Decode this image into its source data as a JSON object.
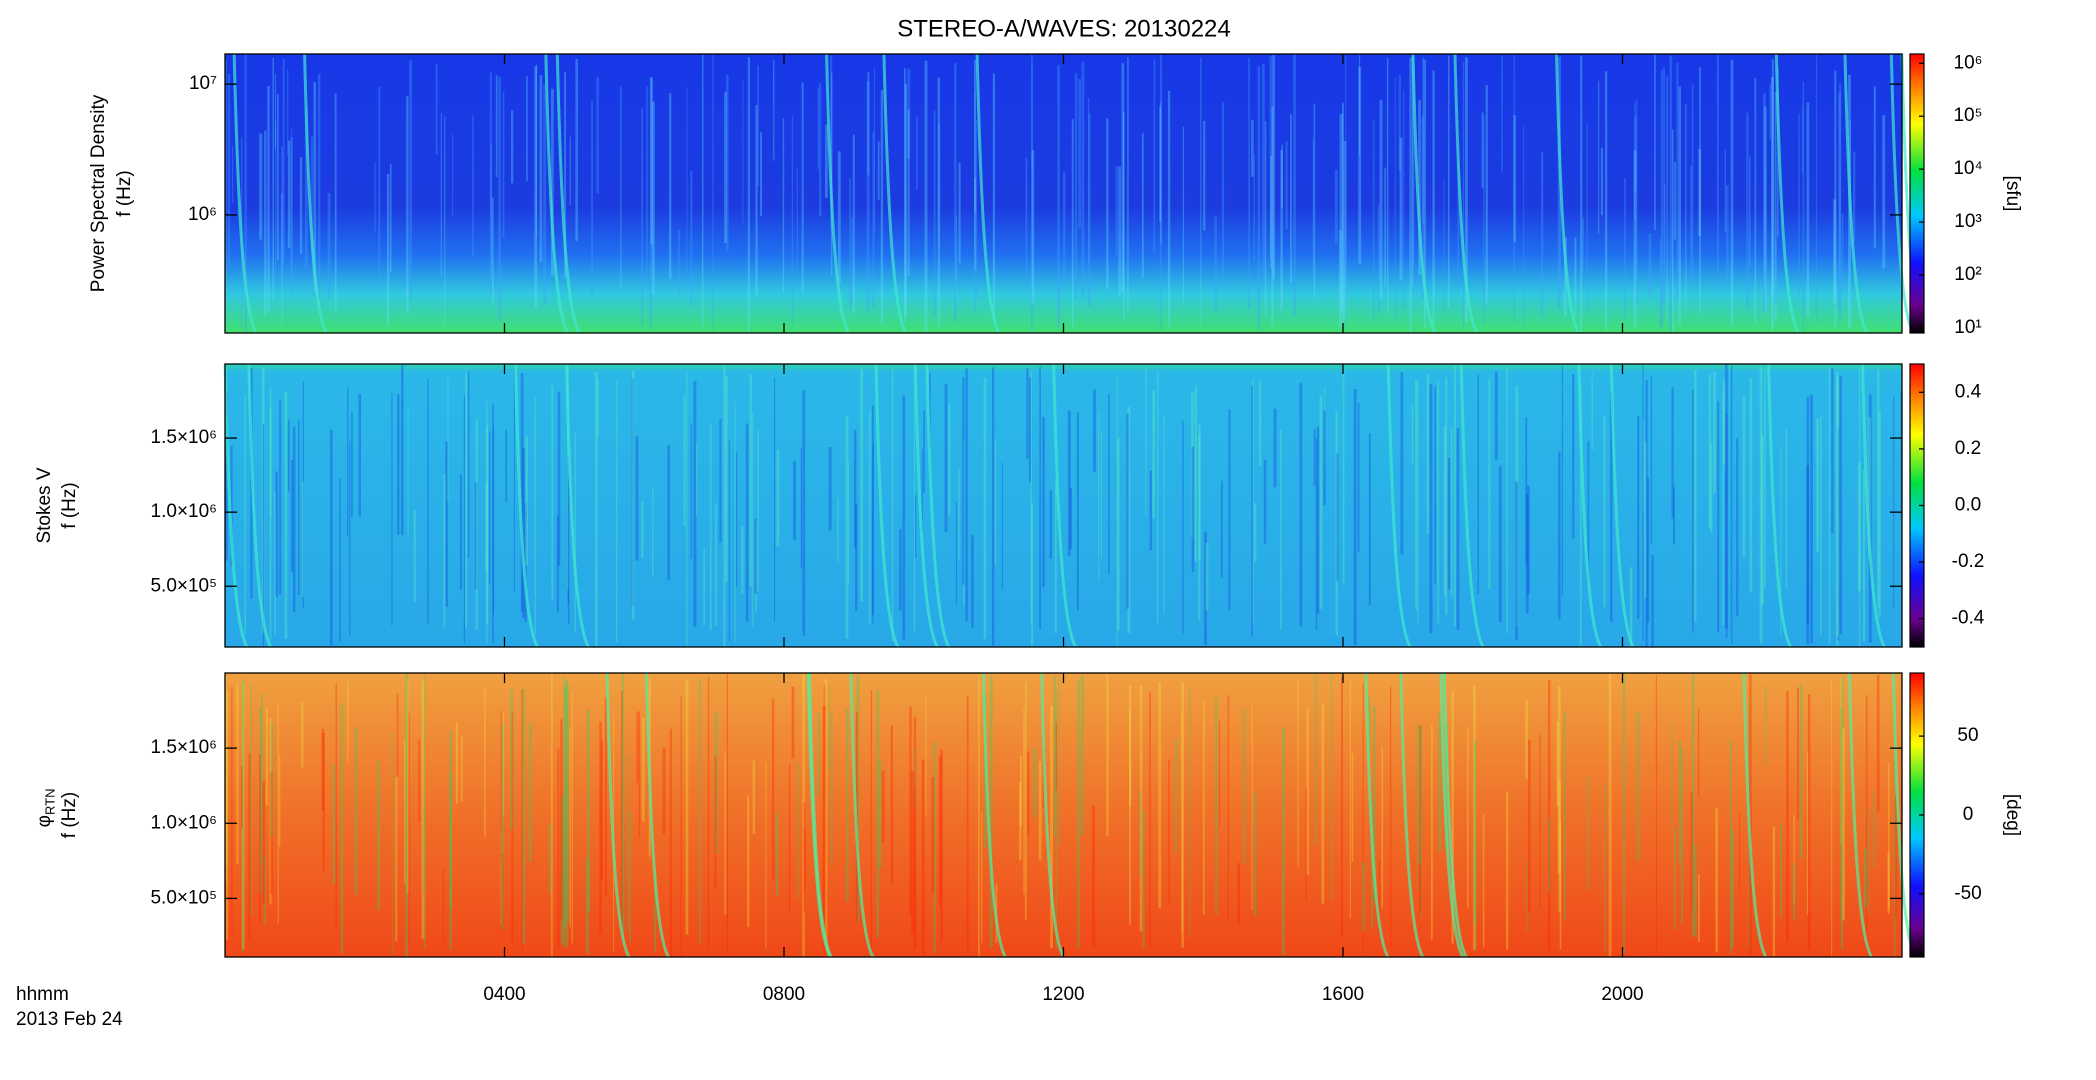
{
  "title": "STEREO-A/WAVES: 20130224",
  "x_axis": {
    "label": "hhmm",
    "date": "2013 Feb 24",
    "xlim": [
      0,
      24
    ],
    "xticks": [
      {
        "value": 4,
        "label": "0400"
      },
      {
        "value": 8,
        "label": "0800"
      },
      {
        "value": 12,
        "label": "1200"
      },
      {
        "value": 16,
        "label": "1600"
      },
      {
        "value": 20,
        "label": "2000"
      }
    ]
  },
  "chart_data": [
    {
      "type": "heatmap",
      "ylabel": "Power Spectral Density",
      "ylabel_f": "f (Hz)",
      "ylim": [
        125000,
        17000000
      ],
      "ylog": true,
      "yticks": [
        {
          "value": 1000000,
          "label": "10⁶"
        },
        {
          "value": 10000000,
          "label": "10⁷"
        }
      ],
      "colorbar": {
        "label": "[sfu]",
        "lim": [
          8,
          1500000
        ],
        "log": true,
        "ticks": [
          {
            "value": 10,
            "label": "10¹"
          },
          {
            "value": 100,
            "label": "10²"
          },
          {
            "value": 1000,
            "label": "10³"
          },
          {
            "value": 10000,
            "label": "10⁴"
          },
          {
            "value": 100000,
            "label": "10⁵"
          },
          {
            "value": 1000000,
            "label": "10⁶"
          }
        ]
      }
    },
    {
      "type": "heatmap",
      "ylabel": "Stokes V",
      "ylabel_f": "f (Hz)",
      "ylim": [
        90000,
        2000000
      ],
      "ylog": false,
      "yticks": [
        {
          "value": 500000,
          "label": "5.0×10⁵"
        },
        {
          "value": 1000000,
          "label": "1.0×10⁶"
        },
        {
          "value": 1500000,
          "label": "1.5×10⁶"
        }
      ],
      "colorbar": {
        "lim": [
          -0.5,
          0.5
        ],
        "log": false,
        "ticks": [
          -0.4,
          -0.2,
          {
            "value": 0,
            "label": "0.0"
          },
          0.2,
          0.4
        ]
      }
    },
    {
      "type": "heatmap",
      "ylabel": "φ",
      "ylabel_sub": "RTN",
      "ylabel_f": "f (Hz)",
      "ylim": [
        110000,
        2000000
      ],
      "ylog": false,
      "yticks": [
        {
          "value": 500000,
          "label": "5.0×10⁵"
        },
        {
          "value": 1000000,
          "label": "1.0×10⁶"
        },
        {
          "value": 1500000,
          "label": "1.5×10⁶"
        }
      ],
      "colorbar": {
        "label": "[deg]",
        "lim": [
          -90,
          90
        ],
        "log": false,
        "ticks": [
          -50,
          0,
          50
        ]
      }
    }
  ]
}
